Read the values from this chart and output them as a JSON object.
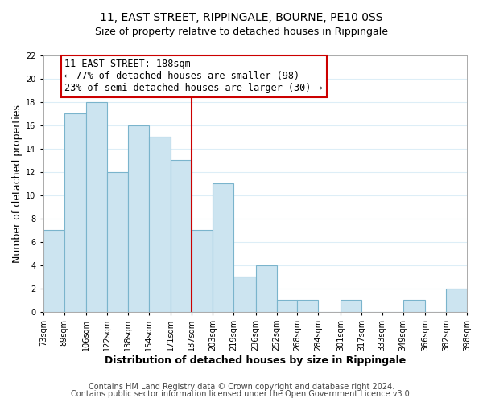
{
  "title": "11, EAST STREET, RIPPINGALE, BOURNE, PE10 0SS",
  "subtitle": "Size of property relative to detached houses in Rippingale",
  "xlabel": "Distribution of detached houses by size in Rippingale",
  "ylabel": "Number of detached properties",
  "bar_color": "#cce4f0",
  "bar_edge_color": "#7ab4cc",
  "bins": [
    73,
    89,
    106,
    122,
    138,
    154,
    171,
    187,
    203,
    219,
    236,
    252,
    268,
    284,
    301,
    317,
    333,
    349,
    366,
    382,
    398
  ],
  "counts": [
    7,
    17,
    18,
    12,
    16,
    15,
    13,
    7,
    11,
    3,
    4,
    1,
    1,
    0,
    1,
    0,
    0,
    1,
    0,
    2
  ],
  "tick_labels": [
    "73sqm",
    "89sqm",
    "106sqm",
    "122sqm",
    "138sqm",
    "154sqm",
    "171sqm",
    "187sqm",
    "203sqm",
    "219sqm",
    "236sqm",
    "252sqm",
    "268sqm",
    "284sqm",
    "301sqm",
    "317sqm",
    "333sqm",
    "349sqm",
    "366sqm",
    "382sqm",
    "398sqm"
  ],
  "reference_line_x": 187,
  "reference_line_color": "#cc0000",
  "annotation_title": "11 EAST STREET: 188sqm",
  "annotation_line1": "← 77% of detached houses are smaller (98)",
  "annotation_line2": "23% of semi-detached houses are larger (30) →",
  "annotation_box_color": "#ffffff",
  "annotation_box_edge_color": "#cc0000",
  "ylim": [
    0,
    22
  ],
  "yticks": [
    0,
    2,
    4,
    6,
    8,
    10,
    12,
    14,
    16,
    18,
    20,
    22
  ],
  "footer1": "Contains HM Land Registry data © Crown copyright and database right 2024.",
  "footer2": "Contains public sector information licensed under the Open Government Licence v3.0.",
  "background_color": "#ffffff",
  "grid_color": "#ddeef7",
  "title_fontsize": 10,
  "subtitle_fontsize": 9,
  "axis_label_fontsize": 9,
  "tick_fontsize": 7,
  "annotation_fontsize": 8.5,
  "footer_fontsize": 7
}
